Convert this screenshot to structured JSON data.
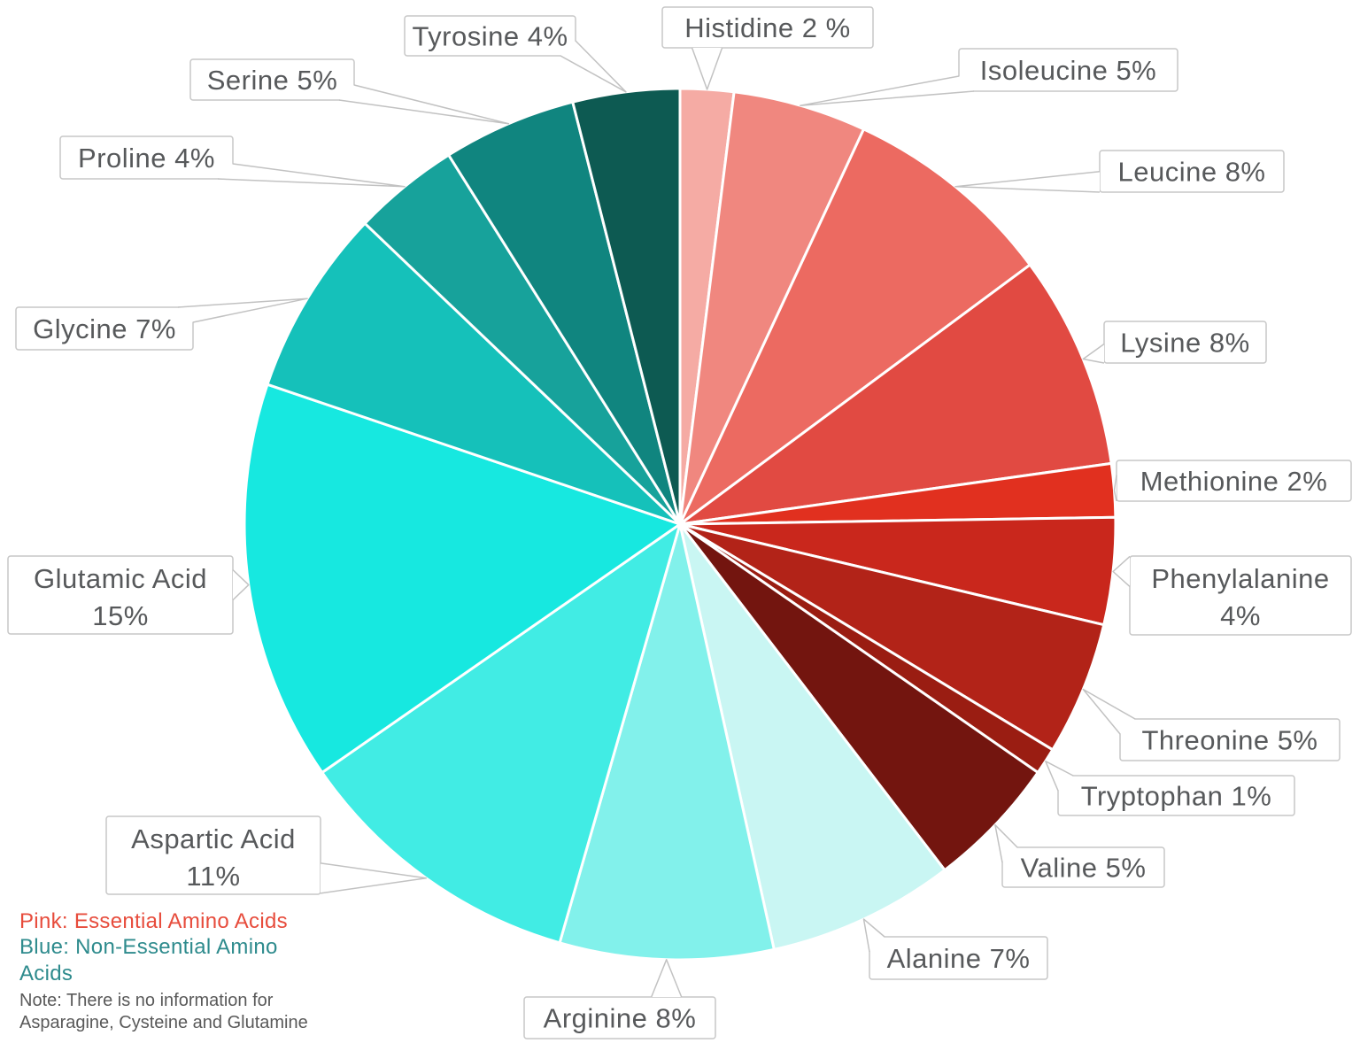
{
  "chart_data": {
    "type": "pie",
    "direction": "clockwise",
    "start_angle_deg": 0,
    "value_unit": "%",
    "slices": [
      {
        "label": "Histidine",
        "value": 2,
        "callout_lines": [
          "Histidine 2 %"
        ],
        "color": "#f5aba4",
        "group": "essential"
      },
      {
        "label": "Isoleucine",
        "value": 5,
        "callout_lines": [
          "Isoleucine 5%"
        ],
        "color": "#f0877f",
        "group": "essential"
      },
      {
        "label": "Leucine",
        "value": 8,
        "callout_lines": [
          "Leucine 8%"
        ],
        "color": "#ec6a61",
        "group": "essential"
      },
      {
        "label": "Lysine",
        "value": 8,
        "callout_lines": [
          "Lysine 8%"
        ],
        "color": "#e14a42",
        "group": "essential"
      },
      {
        "label": "Methionine",
        "value": 2,
        "callout_lines": [
          "Methionine 2%"
        ],
        "color": "#e1301f",
        "group": "essential"
      },
      {
        "label": "Phenylalanine",
        "value": 4,
        "callout_lines": [
          "Phenylalanine",
          "4%"
        ],
        "color": "#c9271c",
        "group": "essential"
      },
      {
        "label": "Threonine",
        "value": 5,
        "callout_lines": [
          "Threonine 5%"
        ],
        "color": "#b22318",
        "group": "essential"
      },
      {
        "label": "Tryptophan",
        "value": 1,
        "callout_lines": [
          "Tryptophan 1%"
        ],
        "color": "#9a1d12",
        "group": "essential"
      },
      {
        "label": "Valine",
        "value": 5,
        "callout_lines": [
          "Valine 5%"
        ],
        "color": "#73150f",
        "group": "essential"
      },
      {
        "label": "Alanine",
        "value": 7,
        "callout_lines": [
          "Alanine 7%"
        ],
        "color": "#c9f6f3",
        "group": "non-essential"
      },
      {
        "label": "Arginine",
        "value": 8,
        "callout_lines": [
          "Arginine 8%"
        ],
        "color": "#82f1eb",
        "group": "non-essential"
      },
      {
        "label": "Aspartic Acid",
        "value": 11,
        "callout_lines": [
          "Aspartic Acid",
          "11%"
        ],
        "color": "#41ece4",
        "group": "non-essential"
      },
      {
        "label": "Glutamic Acid",
        "value": 15,
        "callout_lines": [
          "Glutamic Acid",
          "15%"
        ],
        "color": "#17e8e0",
        "group": "non-essential"
      },
      {
        "label": "Glycine",
        "value": 7,
        "callout_lines": [
          "Glycine 7%"
        ],
        "color": "#15c1ba",
        "group": "non-essential"
      },
      {
        "label": "Proline",
        "value": 4,
        "callout_lines": [
          "Proline 4%"
        ],
        "color": "#17a29b",
        "group": "non-essential"
      },
      {
        "label": "Serine",
        "value": 5,
        "callout_lines": [
          "Serine 5%"
        ],
        "color": "#10857f",
        "group": "non-essential"
      },
      {
        "label": "Tyrosine",
        "value": 4,
        "callout_lines": [
          "Tyrosine 4%"
        ],
        "color": "#0d5a52",
        "group": "non-essential"
      }
    ],
    "callout_style": {
      "background": "#ffffff",
      "border_color": "#c7c7c7",
      "text_color": "#57595b",
      "leader_color": "#c2c2c2"
    },
    "legend": {
      "pink_line": "Pink: Essential Amino Acids",
      "blue_line": "Blue: Non-Essential Amino Acids",
      "note_line": "Note: There is no information for Asparagine, Cysteine and Glutamine",
      "pink_color": "#e74c3c",
      "blue_color": "#2e8b8d",
      "note_color": "#595959"
    }
  }
}
